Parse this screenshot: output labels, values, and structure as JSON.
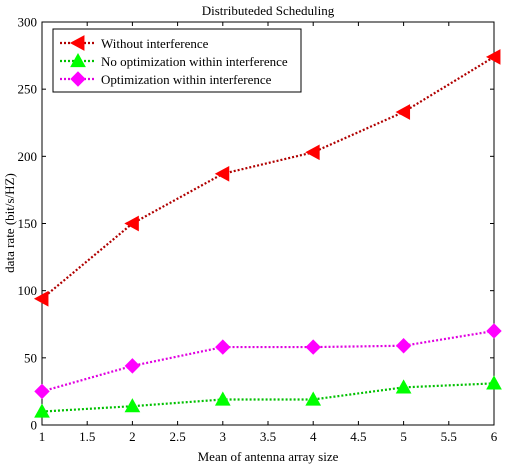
{
  "chart_data": {
    "type": "line",
    "title": "Distributeded Scheduling",
    "xlabel": "Mean of antenna array size",
    "ylabel": "data rate (bit/s/HZ)",
    "xlim": [
      1,
      6
    ],
    "ylim": [
      0,
      300
    ],
    "xticks": [
      "1",
      "1.5",
      "2",
      "2.5",
      "3",
      "3.5",
      "4",
      "4.5",
      "5",
      "5.5",
      "6"
    ],
    "yticks": [
      "0",
      "50",
      "100",
      "150",
      "200",
      "250",
      "300"
    ],
    "grid": false,
    "legend_position": "top-left",
    "x": [
      1,
      2,
      3,
      4,
      5,
      6
    ],
    "series": [
      {
        "name": "Without interference",
        "values": [
          94,
          150,
          187,
          203,
          233,
          274
        ],
        "color": "#ff0000",
        "line_color": "#b00000",
        "marker": "triangle-left"
      },
      {
        "name": "No optimization within interference",
        "values": [
          10,
          14,
          19,
          19,
          28,
          31
        ],
        "color": "#00ff00",
        "line_color": "#00c000",
        "marker": "triangle-up"
      },
      {
        "name": "Optimization within interference",
        "values": [
          25,
          44,
          58,
          58,
          59,
          70
        ],
        "color": "#ff00ff",
        "line_color": "#e000e0",
        "marker": "diamond"
      }
    ]
  }
}
